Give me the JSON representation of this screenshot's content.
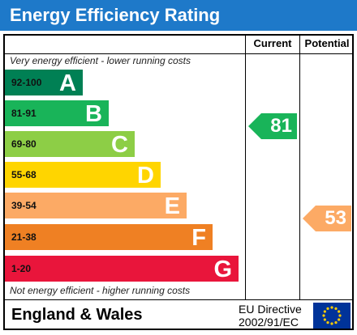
{
  "header": {
    "title": "Energy Efficiency Rating"
  },
  "columns": {
    "current": "Current",
    "potential": "Potential"
  },
  "notes": {
    "top": "Very energy efficient - lower running costs",
    "bottom": "Not energy efficient - higher running costs"
  },
  "bands": [
    {
      "range": "92-100",
      "letter": "A",
      "color": "#008054"
    },
    {
      "range": "81-91",
      "letter": "B",
      "color": "#19b459"
    },
    {
      "range": "69-80",
      "letter": "C",
      "color": "#8dce46"
    },
    {
      "range": "55-68",
      "letter": "D",
      "color": "#ffd500"
    },
    {
      "range": "39-54",
      "letter": "E",
      "color": "#fcaa65"
    },
    {
      "range": "21-38",
      "letter": "F",
      "color": "#ef8023"
    },
    {
      "range": "1-20",
      "letter": "G",
      "color": "#e9153b"
    }
  ],
  "ratings": {
    "current": {
      "value": "81",
      "band": "B",
      "color": "#19b459"
    },
    "potential": {
      "value": "53",
      "band": "E",
      "color": "#fcaa65"
    }
  },
  "footer": {
    "region": "England & Wales",
    "directive_line1": "EU Directive",
    "directive_line2": "2002/91/EC",
    "flag_icon": "eu-flag-icon",
    "flag_color": "#003399",
    "star_color": "#ffcc00"
  }
}
